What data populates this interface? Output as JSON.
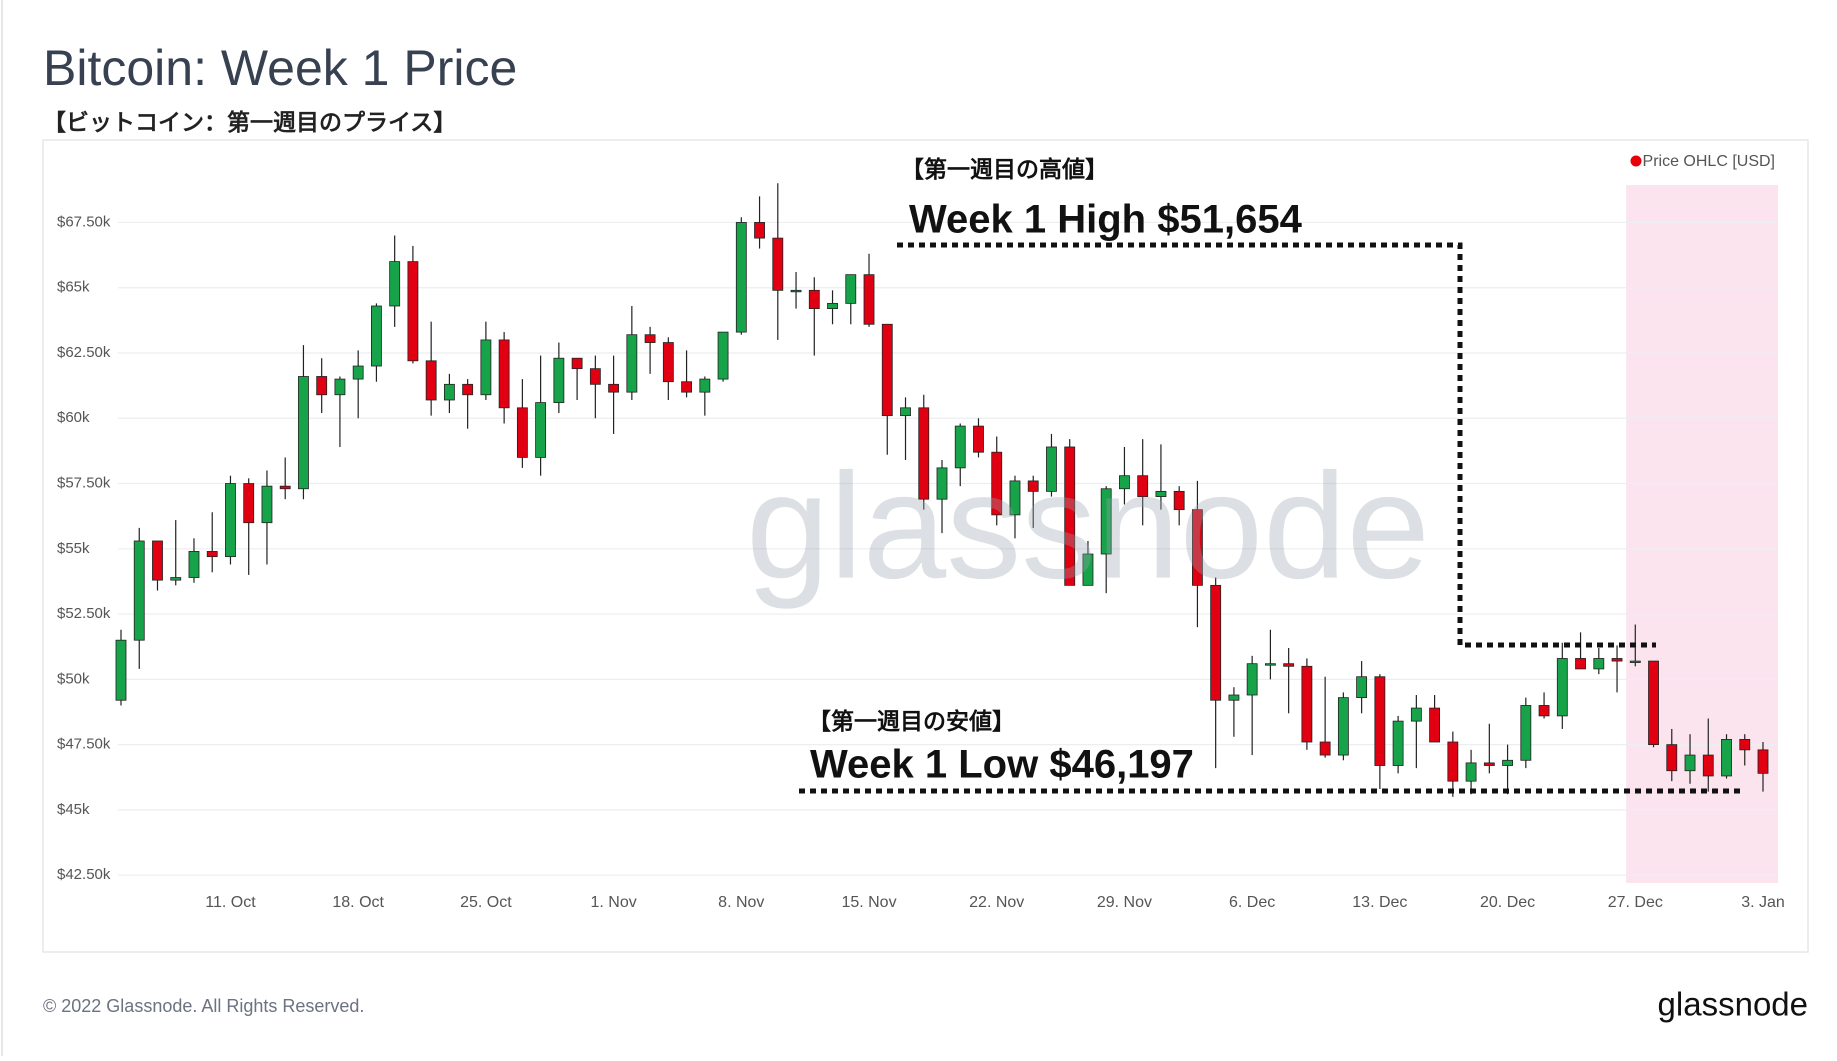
{
  "chart_data": {
    "type": "candlestick",
    "title": "Bitcoin: Week 1 Price",
    "subtitle": "【ビットコイン：第一週目のプライス】",
    "categories": [
      null,
      null,
      null,
      null,
      null,
      null,
      "11. Oct",
      null,
      null,
      null,
      null,
      null,
      null,
      "18. Oct",
      null,
      null,
      null,
      null,
      null,
      null,
      "25. Oct",
      null,
      null,
      null,
      null,
      null,
      null,
      "1. Nov",
      null,
      null,
      null,
      null,
      null,
      null,
      "8. Nov",
      null,
      null,
      null,
      null,
      null,
      null,
      "15. Nov",
      null,
      null,
      null,
      null,
      null,
      null,
      "22. Nov",
      null,
      null,
      null,
      null,
      null,
      null,
      "29. Nov",
      null,
      null,
      null,
      null,
      null,
      null,
      "6. Dec",
      null,
      null,
      null,
      null,
      null,
      null,
      "13. Dec",
      null,
      null,
      null,
      null,
      null,
      null,
      "20. Dec",
      null,
      null,
      null,
      null,
      null,
      null,
      "27. Dec",
      null,
      null,
      null,
      null,
      null,
      null,
      "3. Jan"
    ],
    "series": [
      {
        "name": "Price OHLC [USD]",
        "color": "#e8000b",
        "open": [
          49.2,
          51.5,
          55.3,
          53.8,
          53.9,
          54.9,
          54.7,
          57.5,
          56.0,
          57.4,
          57.3,
          61.6,
          60.9,
          61.5,
          62.0,
          64.3,
          66.0,
          62.2,
          60.7,
          61.3,
          60.9,
          63.0,
          60.4,
          58.5,
          60.6,
          62.3,
          61.9,
          61.3,
          61.0,
          63.2,
          62.9,
          61.4,
          61.0,
          61.5,
          63.3,
          67.5,
          66.9,
          64.9,
          64.9,
          64.2,
          64.4,
          65.5,
          63.6,
          60.1,
          60.4,
          56.9,
          58.1,
          59.7,
          58.7,
          56.3,
          57.6,
          57.2,
          58.9,
          53.6,
          54.8,
          57.3,
          57.8,
          57.0,
          57.2,
          56.5,
          53.6,
          49.2,
          49.4,
          50.6,
          50.6,
          50.5,
          47.6,
          47.1,
          49.3,
          50.1,
          46.7,
          48.4,
          48.9,
          47.6,
          46.1,
          46.8,
          46.7,
          46.9,
          49.0,
          48.6,
          50.8,
          50.4,
          50.8,
          50.7,
          50.7,
          47.5,
          46.5,
          47.1,
          46.3,
          47.7,
          47.3
        ],
        "high": [
          51.9,
          55.8,
          55.3,
          56.1,
          55.4,
          56.4,
          57.8,
          57.7,
          58.0,
          58.5,
          62.8,
          62.3,
          61.6,
          62.6,
          64.4,
          67.0,
          66.6,
          63.7,
          61.7,
          61.5,
          63.7,
          63.3,
          61.5,
          62.4,
          62.9,
          62.3,
          62.4,
          62.4,
          64.3,
          63.5,
          63.1,
          62.6,
          61.6,
          63.3,
          67.7,
          68.5,
          69.0,
          65.6,
          65.4,
          64.9,
          65.5,
          66.3,
          63.6,
          60.8,
          60.9,
          58.4,
          59.8,
          60.0,
          59.3,
          57.8,
          57.8,
          59.4,
          59.2,
          55.3,
          57.4,
          58.9,
          59.2,
          59.0,
          57.4,
          57.6,
          53.9,
          49.7,
          50.9,
          51.9,
          51.2,
          50.8,
          50.1,
          49.5,
          50.7,
          50.2,
          48.6,
          49.4,
          49.4,
          48.0,
          47.3,
          48.3,
          47.5,
          49.3,
          49.5,
          51.4,
          51.8,
          51.2,
          51.3,
          52.1,
          50.7,
          48.1,
          47.9,
          48.5,
          47.9,
          47.9,
          47.6
        ],
        "low": [
          49.0,
          50.4,
          53.4,
          53.6,
          53.7,
          54.1,
          54.4,
          54.0,
          54.4,
          56.9,
          56.9,
          60.2,
          58.9,
          60.0,
          61.4,
          63.5,
          62.1,
          60.1,
          60.2,
          59.6,
          60.7,
          59.8,
          58.1,
          57.8,
          60.2,
          60.7,
          60.0,
          59.4,
          60.7,
          61.7,
          60.7,
          60.8,
          60.1,
          61.4,
          63.2,
          66.5,
          63.0,
          64.2,
          62.4,
          63.6,
          63.6,
          63.5,
          58.6,
          58.4,
          56.5,
          55.6,
          57.4,
          58.5,
          55.9,
          55.4,
          55.8,
          57.0,
          53.6,
          53.6,
          53.3,
          56.7,
          55.9,
          56.5,
          55.9,
          52.0,
          46.6,
          47.8,
          47.1,
          50.0,
          48.7,
          47.3,
          47.0,
          46.9,
          48.7,
          45.8,
          46.4,
          46.6,
          47.6,
          45.5,
          45.6,
          46.4,
          45.6,
          46.6,
          48.5,
          48.1,
          50.4,
          50.2,
          49.5,
          50.5,
          47.4,
          46.1,
          46.0,
          45.7,
          46.2,
          46.7,
          45.7
        ],
        "close": [
          51.5,
          55.3,
          53.8,
          53.9,
          54.9,
          54.7,
          57.5,
          56.0,
          57.4,
          57.3,
          61.6,
          60.9,
          61.5,
          62.0,
          64.3,
          66.0,
          62.2,
          60.7,
          61.3,
          60.9,
          63.0,
          60.4,
          58.5,
          60.6,
          62.3,
          61.9,
          61.3,
          61.0,
          63.2,
          62.9,
          61.4,
          61.0,
          61.5,
          63.3,
          67.5,
          66.9,
          64.9,
          64.9,
          64.2,
          64.4,
          65.5,
          63.6,
          60.1,
          60.4,
          56.9,
          58.1,
          59.7,
          58.7,
          56.3,
          57.6,
          57.2,
          58.9,
          53.6,
          54.8,
          57.3,
          57.8,
          57.0,
          57.2,
          56.5,
          53.6,
          49.2,
          49.4,
          50.6,
          50.6,
          50.5,
          47.6,
          47.1,
          49.3,
          50.1,
          46.7,
          48.4,
          48.9,
          47.6,
          46.1,
          46.8,
          46.7,
          46.9,
          49.0,
          48.6,
          50.8,
          50.4,
          50.8,
          50.7,
          50.7,
          47.5,
          46.5,
          47.1,
          46.3,
          47.7,
          47.3,
          46.4
        ]
      }
    ],
    "up_color": "#16a34a",
    "down_color": "#e00012",
    "ylim": [
      42.2,
      69.7
    ],
    "yticks": [
      {
        "value": 42.5,
        "label": "$42.50k"
      },
      {
        "value": 45,
        "label": "$45k"
      },
      {
        "value": 47.5,
        "label": "$47.50k"
      },
      {
        "value": 50,
        "label": "$50k"
      },
      {
        "value": 52.5,
        "label": "$52.50k"
      },
      {
        "value": 55,
        "label": "$55k"
      },
      {
        "value": 57.5,
        "label": "$57.50k"
      },
      {
        "value": 60,
        "label": "$60k"
      },
      {
        "value": 62.5,
        "label": "$62.50k"
      },
      {
        "value": 65,
        "label": "$65k"
      },
      {
        "value": 67.5,
        "label": "$67.50k"
      }
    ],
    "grid": true,
    "legend": "top-right",
    "annotations": [
      {
        "label": "【第一週目の高値】",
        "text": "Week 1 High $51,654"
      },
      {
        "label": "【第一週目の安値】",
        "text": "Week 1 Low $46,197"
      }
    ],
    "watermark": "glassnode",
    "footer": "© 2022 Glassnode. All Rights Reserved.",
    "logo": "glassnode"
  }
}
